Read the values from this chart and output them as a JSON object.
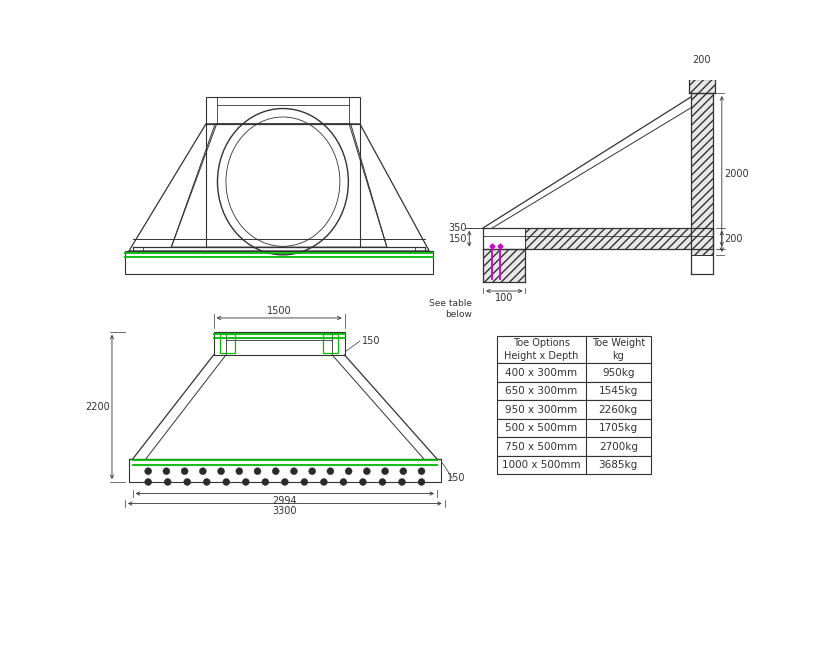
{
  "bg_color": "#ffffff",
  "line_color": "#333333",
  "green_color": "#00bb00",
  "magenta_color": "#cc00cc",
  "table_rows": [
    [
      "400 x 300mm",
      "950kg"
    ],
    [
      "650 x 300mm",
      "1545kg"
    ],
    [
      "950 x 300mm",
      "2260kg"
    ],
    [
      "500 x 500mm",
      "1705kg"
    ],
    [
      "750 x 500mm",
      "2700kg"
    ],
    [
      "1000 x 500mm",
      "3685kg"
    ]
  ]
}
